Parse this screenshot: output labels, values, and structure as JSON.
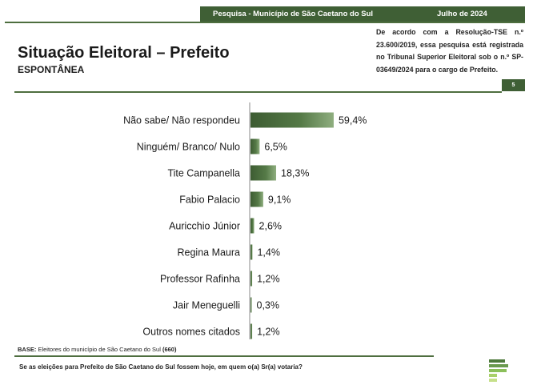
{
  "header": {
    "survey": "Pesquisa - Município de São Caetano do Sul",
    "date": "Julho de 2024"
  },
  "title": "Situação Eleitoral – Prefeito",
  "subtitle": "ESPONTÂNEA",
  "registration_note": "De acordo com a Resolução-TSE n.º 23.600/2019, essa pesquisa está registrada no Tribunal Superior Eleitoral sob o n.º SP-03649/2024 para o cargo de Prefeito.",
  "page_number": "5",
  "base": {
    "label": "BASE:",
    "text": "Eleitores do município de São Caetano do Sul",
    "count": "(660)"
  },
  "question": "Se as eleições para Prefeito de São Caetano do Sul fossem hoje, em quem o(a) Sr(a) votaria?",
  "colors": {
    "brand": "#3f5f35",
    "bar_dark": "#3d5c32",
    "bar_light": "#8fae7f"
  },
  "chart_data": {
    "type": "bar",
    "orientation": "horizontal",
    "categories": [
      "Não sabe/ Não respondeu",
      "Ninguém/ Branco/ Nulo",
      "Tite Campanella",
      "Fabio Palacio",
      "Auricchio Júnior",
      "Regina Maura",
      "Professor Rafinha",
      "Jair Meneguelli",
      "Outros nomes citados"
    ],
    "values": [
      59.4,
      6.5,
      18.3,
      9.1,
      2.6,
      1.4,
      1.2,
      0.3,
      1.2
    ],
    "value_labels": [
      "59,4%",
      "6,5%",
      "18,3%",
      "9,1%",
      "2,6%",
      "1,4%",
      "1,2%",
      "0,3%",
      "1,2%"
    ],
    "xlim": [
      0,
      100
    ],
    "grid": false,
    "legend": "none"
  }
}
